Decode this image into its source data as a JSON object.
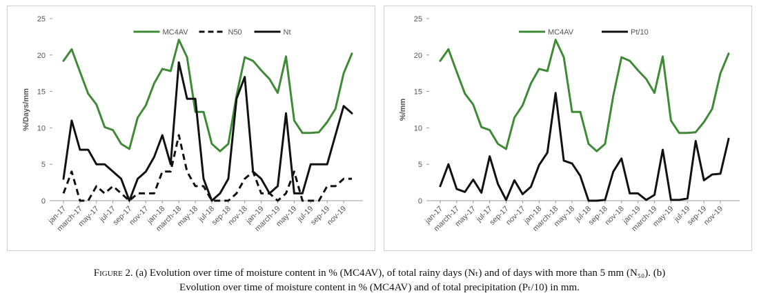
{
  "colors": {
    "mc4av": "#3e8a36",
    "black": "#111111",
    "axis_text": "#555555",
    "grid": "#d9d9d9"
  },
  "chart_data": [
    {
      "type": "line",
      "panel": "a",
      "x_tick_labels": [
        "jan-17",
        "march-17",
        "may-17",
        "jul-17",
        "sep-17",
        "nov-17",
        "jan-18",
        "march-18",
        "may-18",
        "jul-18",
        "sep-18",
        "nov-18",
        "jan-19",
        "march-19",
        "may-19",
        "jul-19",
        "sep-19",
        "nov-19"
      ],
      "ylabel": "%/Days/mm",
      "ylim": [
        0,
        25
      ],
      "yticks": [
        0,
        5,
        10,
        15,
        20,
        25
      ],
      "legend_position": "top-center",
      "series": [
        {
          "name": "MC4AV",
          "style": "solid",
          "color": "#3e8a36",
          "values": [
            19.2,
            20.8,
            17.7,
            14.7,
            13.2,
            10.1,
            9.7,
            7.8,
            7.1,
            11.4,
            13.1,
            16.1,
            18.1,
            17.8,
            22.1,
            19.7,
            12.2,
            12.2,
            7.8,
            6.8,
            7.8,
            14.4,
            19.7,
            19.2,
            17.9,
            16.7,
            14.8,
            19.8,
            11.0,
            9.3,
            9.3,
            9.4,
            10.8,
            12.6,
            17.5,
            20.2
          ]
        },
        {
          "name": "N50",
          "style": "dashed",
          "color": "#111111",
          "values": [
            1,
            4,
            0,
            0,
            2,
            1,
            2,
            1,
            0,
            1,
            1,
            1,
            4,
            4,
            9,
            4,
            2,
            2,
            0,
            0,
            0,
            1,
            3,
            4,
            1,
            1,
            0,
            1,
            4,
            0,
            0,
            0,
            2,
            2,
            3,
            3
          ]
        },
        {
          "name": "Nt",
          "style": "solid",
          "color": "#111111",
          "values": [
            3,
            11,
            7,
            7,
            5,
            5,
            4,
            3,
            0,
            3,
            4,
            6,
            9,
            5,
            19,
            14,
            14,
            3,
            0,
            1,
            3,
            14,
            17,
            4,
            3,
            1,
            2,
            12,
            1,
            1,
            5,
            5,
            5,
            9,
            13,
            12
          ]
        }
      ]
    },
    {
      "type": "line",
      "panel": "b",
      "x_tick_labels": [
        "jan-17",
        "march-17",
        "may-17",
        "jul-17",
        "sep-17",
        "nov-17",
        "jan-18",
        "march-18",
        "may-18",
        "jul-18",
        "sep-18",
        "nov-18",
        "jan-19",
        "march-19",
        "may-19",
        "jul-19",
        "sep-19",
        "nov-19"
      ],
      "ylabel": "%/mm",
      "ylim": [
        0,
        25
      ],
      "yticks": [
        0,
        5,
        10,
        15,
        20,
        25
      ],
      "legend_position": "top-center",
      "series": [
        {
          "name": "MC4AV",
          "style": "solid",
          "color": "#3e8a36",
          "values": [
            19.2,
            20.8,
            17.7,
            14.7,
            13.2,
            10.1,
            9.7,
            7.8,
            7.1,
            11.4,
            13.1,
            16.1,
            18.1,
            17.8,
            22.1,
            19.7,
            12.2,
            12.2,
            7.8,
            6.8,
            7.8,
            14.4,
            19.7,
            19.2,
            17.9,
            16.7,
            14.8,
            19.8,
            11.0,
            9.3,
            9.3,
            9.4,
            10.8,
            12.6,
            17.5,
            20.2
          ]
        },
        {
          "name": "Pt/10",
          "style": "solid",
          "color": "#111111",
          "values": [
            2.0,
            5.0,
            1.6,
            1.2,
            2.9,
            1.1,
            6.1,
            2.3,
            0.1,
            2.8,
            0.9,
            1.9,
            4.9,
            6.6,
            14.8,
            5.5,
            5.1,
            3.4,
            0.0,
            0.0,
            0.1,
            4.0,
            5.8,
            1.0,
            1.0,
            0.1,
            0.8,
            7.0,
            0.1,
            0.1,
            0.3,
            8.2,
            2.8,
            3.6,
            3.7,
            8.5
          ]
        }
      ]
    }
  ],
  "caption": {
    "figure_label": "Figure",
    "line1": " 2. (a) Evolution over time of moisture content in % (MC4AV), of total rainy days (Nₜ) and of days with more than 5 mm (N₅₀). (b)",
    "line2": "Evolution over time of moisture content in % (MC4AV) and of total precipitation (Pₜ/10) in mm."
  }
}
